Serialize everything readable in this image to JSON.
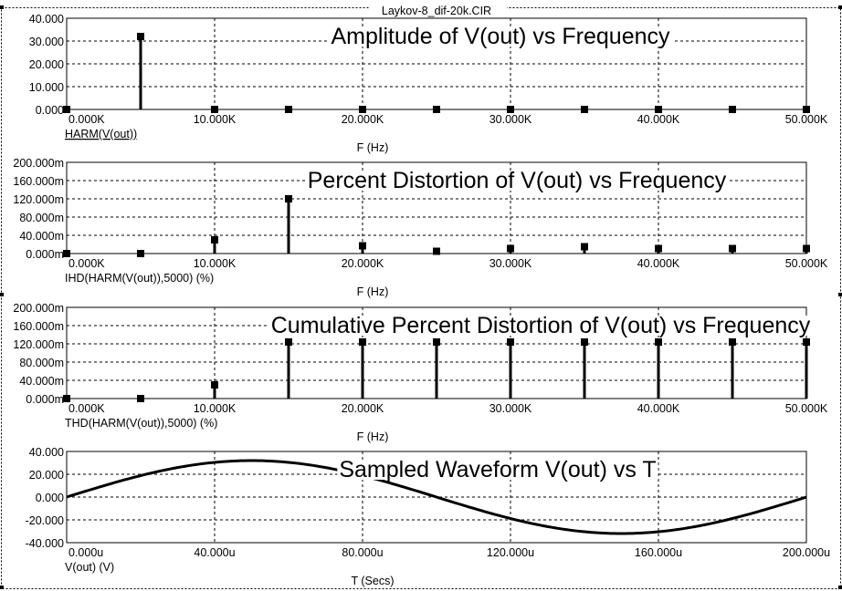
{
  "window": {
    "title": "Laykov-8_dif-20k.CIR"
  },
  "chart_data": [
    {
      "type": "bar",
      "title": "Amplitude of V(out) vs Frequency",
      "ylabel": "HARM(V(out))",
      "xlabel": "F (Hz)",
      "xlim": [
        0,
        50000
      ],
      "ylim": [
        0,
        40
      ],
      "x_ticks": [
        "0.000K",
        "10.000K",
        "20.000K",
        "30.000K",
        "40.000K",
        "50.000K"
      ],
      "y_ticks": [
        "0.000",
        "10.000",
        "20.000",
        "30.000",
        "40.000"
      ],
      "x": [
        0,
        5000,
        10000,
        15000,
        20000,
        25000,
        30000,
        35000,
        40000,
        45000,
        50000
      ],
      "values": [
        0,
        32,
        0,
        0,
        0,
        0,
        0,
        0,
        0,
        0,
        0
      ],
      "grid": true
    },
    {
      "type": "bar",
      "title": "Percent Distortion of V(out) vs Frequency",
      "ylabel": "IHD(HARM(V(out)),5000) (%)",
      "xlabel": "F (Hz)",
      "xlim": [
        0,
        50000
      ],
      "ylim": [
        0,
        200
      ],
      "x_ticks": [
        "0.000K",
        "10.000K",
        "20.000K",
        "30.000K",
        "40.000K",
        "50.000K"
      ],
      "y_ticks": [
        "0.000m",
        "40.000m",
        "80.000m",
        "120.000m",
        "160.000m",
        "200.000m"
      ],
      "x": [
        0,
        5000,
        10000,
        15000,
        20000,
        25000,
        30000,
        35000,
        40000,
        45000,
        50000
      ],
      "values": [
        0,
        0,
        30,
        120,
        17,
        5,
        11,
        15,
        11,
        11,
        11
      ],
      "grid": true
    },
    {
      "type": "bar",
      "title": "Cumulative Percent Distortion of V(out) vs Frequency",
      "ylabel": "THD(HARM(V(out)),5000) (%)",
      "xlabel": "F (Hz)",
      "xlim": [
        0,
        50000
      ],
      "ylim": [
        0,
        200
      ],
      "x_ticks": [
        "0.000K",
        "10.000K",
        "20.000K",
        "30.000K",
        "40.000K",
        "50.000K"
      ],
      "y_ticks": [
        "0.000m",
        "40.000m",
        "80.000m",
        "120.000m",
        "160.000m",
        "200.000m"
      ],
      "x": [
        0,
        5000,
        10000,
        15000,
        20000,
        25000,
        30000,
        35000,
        40000,
        45000,
        50000
      ],
      "values": [
        0,
        0,
        30,
        124,
        124,
        124,
        124,
        124,
        124,
        124,
        124
      ],
      "grid": true
    },
    {
      "type": "line",
      "title": "Sampled Waveform  V(out) vs T",
      "ylabel": "V(out) (V)",
      "xlabel": "T (Secs)",
      "xlim": [
        0,
        200
      ],
      "ylim": [
        -40,
        40
      ],
      "x_ticks": [
        "0.000u",
        "40.000u",
        "80.000u",
        "120.000u",
        "160.000u",
        "200.000u"
      ],
      "y_ticks": [
        "-40.000",
        "-20.000",
        "0.000",
        "20.000",
        "40.000"
      ],
      "amplitude": 32,
      "period": 200,
      "grid": true
    }
  ]
}
